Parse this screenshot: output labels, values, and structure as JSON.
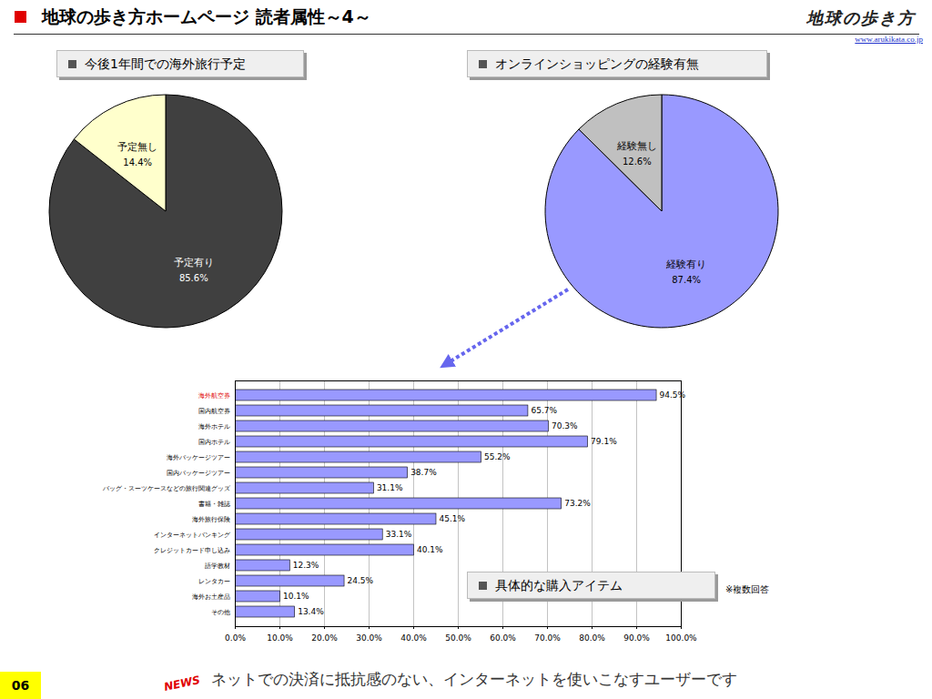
{
  "header": {
    "title": "地球の歩き方ホームページ 読者属性～4～",
    "logo": "地球の歩き方",
    "url": "www.arukikata.co.jp"
  },
  "chart_data": [
    {
      "type": "pie",
      "title": "今後1年間での海外旅行予定",
      "categories": [
        "予定有り",
        "予定無し"
      ],
      "values": [
        85.6,
        14.4
      ],
      "value_labels": [
        "85.6%",
        "14.4%"
      ],
      "colors": [
        "#404040",
        "#ffffcc"
      ],
      "data_labels": true
    },
    {
      "type": "pie",
      "title": "オンラインショッピングの経験有無",
      "categories": [
        "経験有り",
        "経験無し"
      ],
      "values": [
        87.4,
        12.6
      ],
      "value_labels": [
        "87.4%",
        "12.6%"
      ],
      "colors": [
        "#9999ff",
        "#c0c0c0"
      ],
      "data_labels": true
    },
    {
      "type": "bar",
      "orientation": "horizontal",
      "title": "具体的な購入アイテム",
      "annotation": "※複数回答",
      "categories": [
        "海外航空券",
        "国内航空券",
        "海外ホテル",
        "国内ホテル",
        "海外パッケージツアー",
        "国内パッケージツアー",
        "バッグ・スーツケースなどの旅行関連グッズ",
        "書籍・雑誌",
        "海外旅行保険",
        "インターネットバンキング",
        "クレジットカード申し込み",
        "語学教材",
        "レンタカー",
        "海外お土産品",
        "その他"
      ],
      "values": [
        94.5,
        65.7,
        70.3,
        79.1,
        55.2,
        38.7,
        31.1,
        73.2,
        45.1,
        33.1,
        40.1,
        12.3,
        24.5,
        10.1,
        13.4
      ],
      "value_labels": [
        "94.5%",
        "65.7%",
        "70.3%",
        "79.1%",
        "55.2%",
        "38.7%",
        "31.1%",
        "73.2%",
        "45.1%",
        "33.1%",
        "40.1%",
        "12.3%",
        "24.5%",
        "10.1%",
        "13.4%"
      ],
      "color": "#9999ff",
      "xlim": [
        0,
        100
      ],
      "xticks": [
        {
          "value": 0,
          "label": "0.0%"
        },
        {
          "value": 10,
          "label": "10.0%"
        },
        {
          "value": 20,
          "label": "20.0%"
        },
        {
          "value": 30,
          "label": "30.0%"
        },
        {
          "value": 40,
          "label": "40.0%"
        },
        {
          "value": 50,
          "label": "50.0%"
        },
        {
          "value": 60,
          "label": "60.0%"
        },
        {
          "value": 70,
          "label": "70.0%"
        },
        {
          "value": 80,
          "label": "80.0%"
        },
        {
          "value": 90,
          "label": "90.0%"
        },
        {
          "value": 100,
          "label": "100.0%"
        }
      ],
      "grid": true,
      "data_labels": true
    }
  ],
  "footer": {
    "page": "06",
    "badge": "NEWS",
    "text": "ネットでの決済に抵抗感のない、インターネットを使いこなすユーザーです"
  }
}
